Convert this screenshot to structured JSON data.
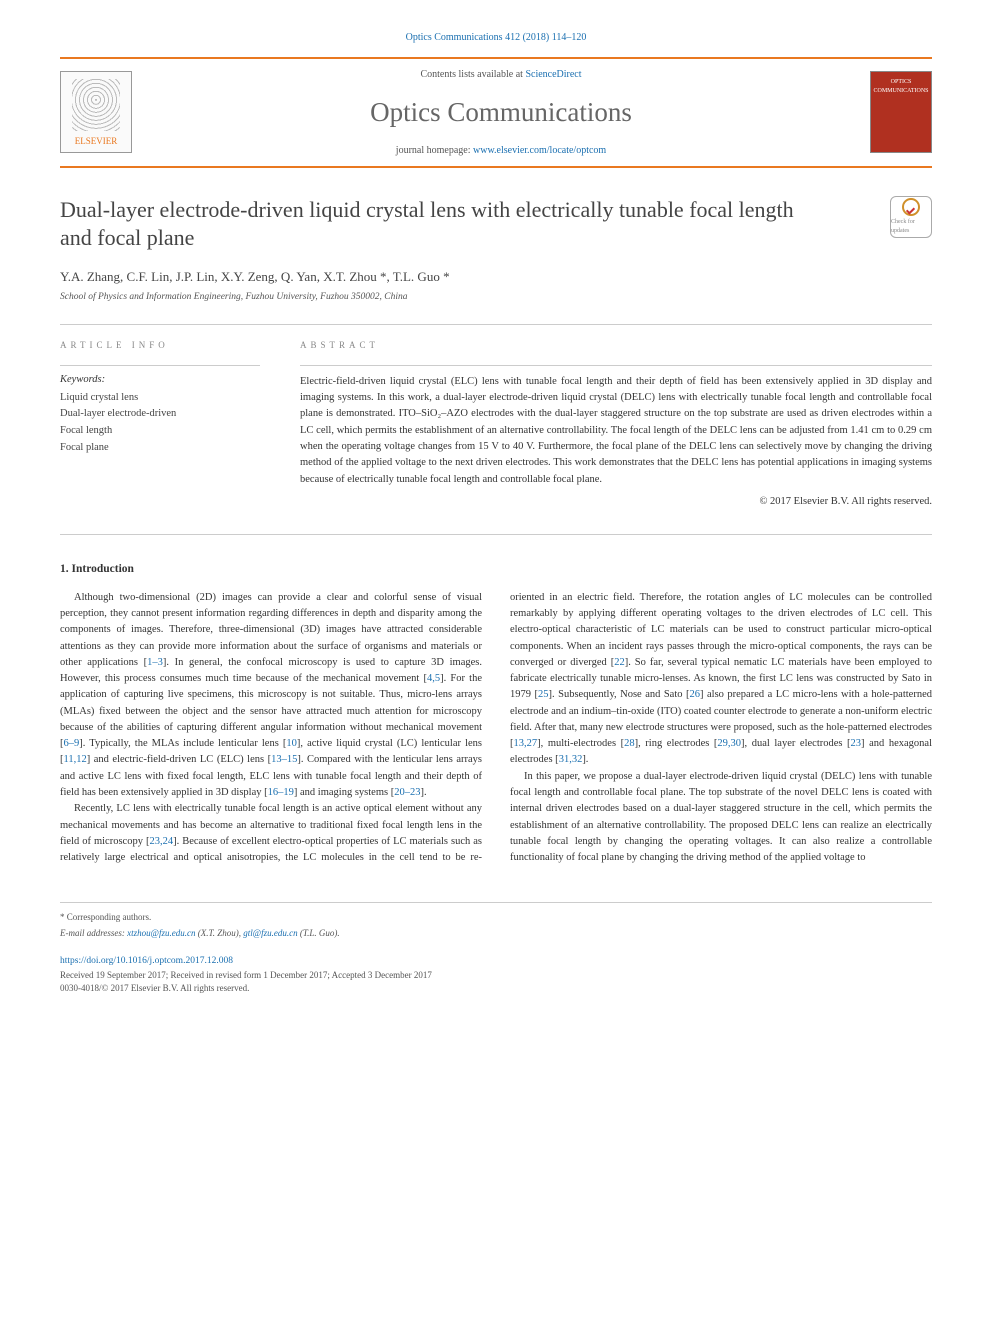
{
  "header": {
    "citation": "Optics Communications 412 (2018) 114–120",
    "contents_prefix": "Contents lists available at ",
    "contents_link": "ScienceDirect",
    "journal_name": "Optics Communications",
    "homepage_prefix": "journal homepage: ",
    "homepage_url": "www.elsevier.com/locate/optcom",
    "publisher_label": "ELSEVIER",
    "cover_label": "OPTICS COMMUNICATIONS",
    "check_label": "Check for updates"
  },
  "article": {
    "title": "Dual-layer electrode-driven liquid crystal lens with electrically tunable focal length and focal plane",
    "authors": "Y.A. Zhang, C.F. Lin, J.P. Lin, X.Y. Zeng, Q. Yan, X.T. Zhou *, T.L. Guo *",
    "affiliation": "School of Physics and Information Engineering, Fuzhou University, Fuzhou 350002, China"
  },
  "info": {
    "article_info_label": "ARTICLE INFO",
    "keywords_label": "Keywords:",
    "keywords": [
      "Liquid crystal lens",
      "Dual-layer electrode-driven",
      "Focal length",
      "Focal plane"
    ]
  },
  "abstract": {
    "label": "ABSTRACT",
    "text": "Electric-field-driven liquid crystal (ELC) lens with tunable focal length and their depth of field has been extensively applied in 3D display and imaging systems. In this work, a dual-layer electrode-driven liquid crystal (DELC) lens with electrically tunable focal length and controllable focal plane is demonstrated. ITO–SiO₂–AZO electrodes with the dual-layer staggered structure on the top substrate are used as driven electrodes within a LC cell, which permits the establishment of an alternative controllability. The focal length of the DELC lens can be adjusted from 1.41 cm to 0.29 cm when the operating voltage changes from 15 V to 40 V. Furthermore, the focal plane of the DELC lens can selectively move by changing the driving method of the applied voltage to the next driven electrodes. This work demonstrates that the DELC lens has potential applications in imaging systems because of electrically tunable focal length and controllable focal plane.",
    "copyright": "© 2017 Elsevier B.V. All rights reserved."
  },
  "body": {
    "section_heading": "1. Introduction",
    "paragraphs": [
      "Although two-dimensional (2D) images can provide a clear and colorful sense of visual perception, they cannot present information regarding differences in depth and disparity among the components of images. Therefore, three-dimensional (3D) images have attracted considerable attentions as they can provide more information about the surface of organisms and materials or other applications [1–3]. In general, the confocal microscopy is used to capture 3D images. However, this process consumes much time because of the mechanical movement [4,5]. For the application of capturing live specimens, this microscopy is not suitable. Thus, micro-lens arrays (MLAs) fixed between the object and the sensor have attracted much attention for microscopy because of the abilities of capturing different angular information without mechanical movement [6–9]. Typically, the MLAs include lenticular lens [10], active liquid crystal (LC) lenticular lens [11,12] and electric-field-driven LC (ELC) lens [13–15]. Compared with the lenticular lens arrays and active LC lens with fixed focal length, ELC lens with tunable focal length and their depth of field has been extensively applied in 3D display [16–19] and imaging systems [20–23].",
      "Recently, LC lens with electrically tunable focal length is an active optical element without any mechanical movements and has become an alternative to traditional fixed focal length lens in the field of microscopy [23,24]. Because of excellent electro-optical properties of LC materials such as relatively large electrical and optical anisotropies, the LC molecules in the cell tend to be re-oriented in an electric field. Therefore, the rotation angles of LC molecules can be controlled remarkably by applying different operating voltages to the driven electrodes of LC cell. This electro-optical characteristic of LC materials can be used to construct particular micro-optical components. When an incident rays passes through the micro-optical components, the rays can be converged or diverged [22]. So far, several typical nematic LC materials have been employed to fabricate electrically tunable micro-lenses. As known, the first LC lens was constructed by Sato in 1979 [25]. Subsequently, Nose and Sato [26] also prepared a LC micro-lens with a hole-patterned electrode and an indium–tin-oxide (ITO) coated counter electrode to generate a non-uniform electric field. After that, many new electrode structures were proposed, such as the hole-patterned electrodes [13,27], multi-electrodes [28], ring electrodes [29,30], dual layer electrodes [23] and hexagonal electrodes [31,32].",
      "In this paper, we propose a dual-layer electrode-driven liquid crystal (DELC) lens with tunable focal length and controllable focal plane. The top substrate of the novel DELC lens is coated with internal driven electrodes based on a dual-layer staggered structure in the cell, which permits the establishment of an alternative controllability. The proposed DELC lens can realize an electrically tunable focal length by changing the operating voltages. It can also realize a controllable functionality of focal plane by changing the driving method of the applied voltage to"
    ]
  },
  "footer": {
    "corresponding_label": "* Corresponding authors.",
    "email_label": "E-mail addresses: ",
    "email1": "xtzhou@fzu.edu.cn",
    "email1_name": " (X.T. Zhou), ",
    "email2": "gtl@fzu.edu.cn",
    "email2_name": " (T.L. Guo).",
    "doi": "https://doi.org/10.1016/j.optcom.2017.12.008",
    "history": "Received 19 September 2017; Received in revised form 1 December 2017; Accepted 3 December 2017",
    "issn": "0030-4018/© 2017 Elsevier B.V. All rights reserved."
  },
  "colors": {
    "accent": "#e97820",
    "link": "#1a6fb0",
    "text": "#333333",
    "muted": "#555555"
  }
}
